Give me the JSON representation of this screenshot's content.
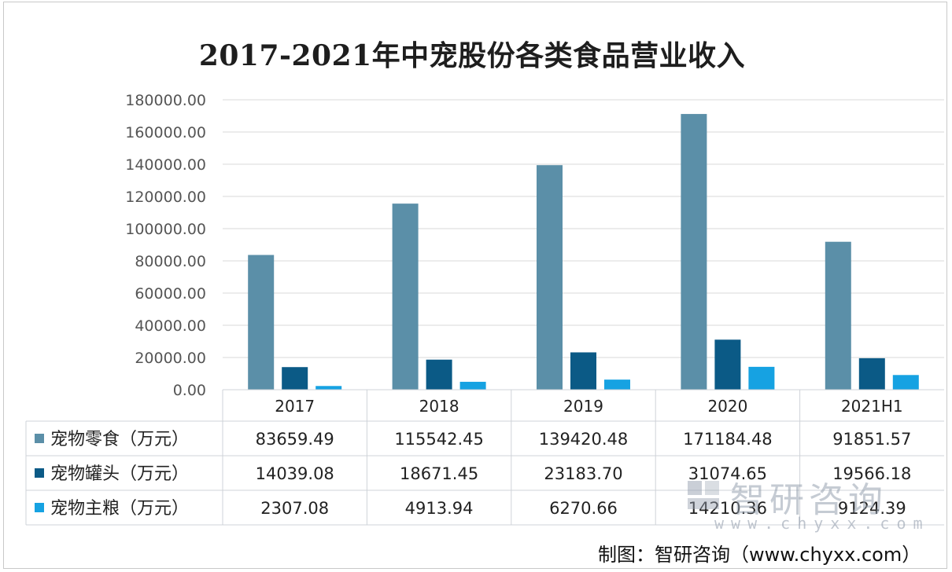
{
  "chart_data": {
    "type": "bar",
    "title": "2017-2021年中宠股份各类食品营业收入",
    "categories": [
      "2017",
      "2018",
      "2019",
      "2020",
      "2021H1"
    ],
    "series": [
      {
        "name": "宠物零食（万元）",
        "values": [
          83659.49,
          115542.45,
          139420.48,
          171184.48,
          91851.57
        ],
        "display": [
          "83659.49",
          "115542.45",
          "139420.48",
          "171184.48",
          "91851.57"
        ],
        "color": "#5b8fa8"
      },
      {
        "name": "宠物罐头（万元）",
        "values": [
          14039.08,
          18671.45,
          23183.7,
          31074.65,
          19566.18
        ],
        "display": [
          "14039.08",
          "18671.45",
          "23183.70",
          "31074.65",
          "19566.18"
        ],
        "color": "#0b5a86"
      },
      {
        "name": "宠物主粮（万元）",
        "values": [
          2307.08,
          4913.94,
          6270.66,
          14210.36,
          9124.39
        ],
        "display": [
          "2307.08",
          "4913.94",
          "6270.66",
          "14210.36",
          "9124.39"
        ],
        "color": "#16a2e2"
      }
    ],
    "ylim": [
      0,
      180000
    ],
    "yticks": [
      "0.00",
      "20000.00",
      "40000.00",
      "60000.00",
      "80000.00",
      "100000.00",
      "120000.00",
      "140000.00",
      "160000.00",
      "180000.00"
    ],
    "grid": true,
    "legend": "data-table"
  },
  "watermark": {
    "text": "智研咨询",
    "url": "www.chyxx.com"
  },
  "source": "制图：智研咨询（www.chyxx.com）"
}
